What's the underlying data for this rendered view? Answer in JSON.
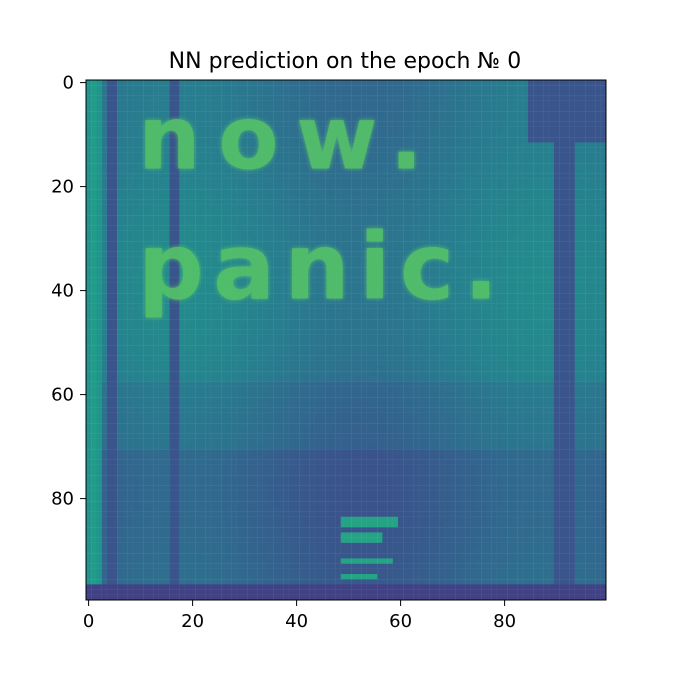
{
  "figure": {
    "title": "NN prediction on the epoch № 0"
  },
  "chart_data": {
    "type": "heatmap",
    "title": "NN prediction on the epoch № 0",
    "xlabel": "",
    "ylabel": "",
    "grid": false,
    "legend": "none",
    "colormap": "viridis",
    "shape": [
      100,
      100
    ],
    "xlim": [
      -0.5,
      99.5
    ],
    "ylim": [
      99.5,
      -0.5
    ],
    "x_ticks": [
      0,
      20,
      40,
      60,
      80
    ],
    "y_ticks": [
      0,
      20,
      40,
      60,
      80
    ],
    "annotations": [
      "now.",
      "panic."
    ],
    "value_levels": {
      "background": 0.42,
      "text_body": 0.82,
      "text_peak": 0.95,
      "left_edge_stripe": 0.62,
      "dark_stripes": 0.22,
      "bottom_marks": 0.66
    },
    "colors": {
      "low": "#440154",
      "mid": "#21918c",
      "high": "#fde725"
    }
  }
}
